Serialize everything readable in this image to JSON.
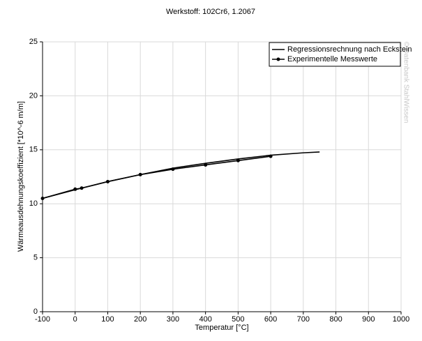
{
  "chart_data": {
    "type": "line",
    "title": "Werkstoff: 102Cr6, 1.2067",
    "x_label": "Temperatur [°C]",
    "y_label": "Wärmeausdehnungskoeffizient [*10^-6 m/m]",
    "watermark": "© Datenbank StahlWissen",
    "xlim": [
      -100,
      1000
    ],
    "xticks": [
      -100,
      0,
      100,
      200,
      300,
      400,
      500,
      600,
      700,
      800,
      900,
      1000
    ],
    "ylim": [
      0,
      25
    ],
    "yticks": [
      0,
      5,
      10,
      15,
      20,
      25
    ],
    "grid": true,
    "legend": "upper right",
    "series": [
      {
        "name": "Regressionsrechnung nach Eckstein",
        "color": "#000000",
        "markers": false,
        "x": [
          -100,
          0,
          100,
          200,
          300,
          400,
          500,
          600,
          700,
          750
        ],
        "values": [
          10.5,
          11.3,
          12.05,
          12.7,
          13.3,
          13.75,
          14.15,
          14.5,
          14.72,
          14.8
        ]
      },
      {
        "name": "Experimentelle Messwerte",
        "color": "#000000",
        "markers": true,
        "x": [
          -100,
          0,
          20,
          100,
          200,
          300,
          400,
          500,
          600
        ],
        "values": [
          10.5,
          11.35,
          11.45,
          12.05,
          12.7,
          13.2,
          13.6,
          14.0,
          14.4
        ]
      }
    ]
  }
}
